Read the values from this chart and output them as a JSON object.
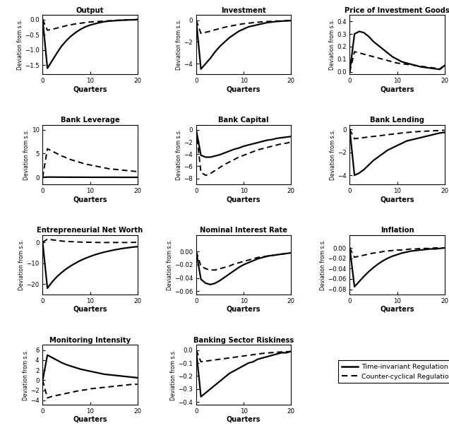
{
  "titles": [
    "Output",
    "Investment",
    "Price of Investment Goods",
    "Bank Leverage",
    "Bank Capital",
    "Bank Lending",
    "Entrepreneurial Net Worth",
    "Nominal Interest Rate",
    "Inflation",
    "Monitoring Intensity",
    "Banking Sector Riskiness"
  ],
  "quarters": 21,
  "ylabel": "Deviation from s.s.",
  "xlabel": "Quarters",
  "legend_labels": [
    "Time-invariant Regulation",
    "Counter-cyclical Regulation"
  ],
  "background": "#ffffff",
  "panels": {
    "Output": {
      "solid": [
        0,
        -1.6,
        -1.35,
        -1.1,
        -0.87,
        -0.69,
        -0.54,
        -0.42,
        -0.32,
        -0.24,
        -0.18,
        -0.14,
        -0.1,
        -0.07,
        -0.05,
        -0.04,
        -0.03,
        -0.02,
        -0.01,
        -0.01,
        0.0
      ],
      "dashed": [
        0,
        -0.35,
        -0.32,
        -0.28,
        -0.24,
        -0.2,
        -0.17,
        -0.14,
        -0.12,
        -0.1,
        -0.08,
        -0.07,
        -0.06,
        -0.05,
        -0.04,
        -0.03,
        -0.02,
        -0.02,
        -0.01,
        -0.01,
        0.0
      ],
      "ylim": [
        -1.8,
        0.15
      ],
      "yticks": [
        0,
        -0.5,
        -1.0,
        -1.5
      ]
    },
    "Investment": {
      "solid": [
        0,
        -4.5,
        -4.0,
        -3.5,
        -2.9,
        -2.4,
        -2.0,
        -1.6,
        -1.3,
        -1.0,
        -0.8,
        -0.6,
        -0.5,
        -0.4,
        -0.3,
        -0.2,
        -0.15,
        -0.1,
        -0.07,
        -0.04,
        -0.02
      ],
      "dashed": [
        0,
        -1.2,
        -1.1,
        -1.0,
        -0.87,
        -0.75,
        -0.64,
        -0.54,
        -0.46,
        -0.38,
        -0.31,
        -0.26,
        -0.21,
        -0.17,
        -0.13,
        -0.11,
        -0.08,
        -0.06,
        -0.05,
        -0.03,
        -0.02
      ],
      "ylim": [
        -5.0,
        0.5
      ],
      "yticks": [
        0,
        -2,
        -4
      ]
    },
    "Price of Investment Goods": {
      "solid": [
        0,
        0.3,
        0.32,
        0.31,
        0.28,
        0.24,
        0.21,
        0.18,
        0.15,
        0.12,
        0.1,
        0.08,
        0.07,
        0.06,
        0.05,
        0.04,
        0.035,
        0.03,
        0.025,
        0.02,
        0.05
      ],
      "dashed": [
        0,
        0.16,
        0.15,
        0.14,
        0.13,
        0.12,
        0.11,
        0.1,
        0.09,
        0.08,
        0.07,
        0.065,
        0.06,
        0.055,
        0.05,
        0.045,
        0.04,
        0.035,
        0.03,
        0.025,
        0.05
      ],
      "ylim": [
        -0.02,
        0.45
      ],
      "yticks": [
        0,
        0.1,
        0.2,
        0.3,
        0.4
      ]
    },
    "Bank Leverage": {
      "solid": [
        0,
        0.05,
        0.05,
        0.04,
        0.04,
        0.03,
        0.03,
        0.02,
        0.02,
        0.02,
        0.01,
        0.01,
        0.01,
        0.01,
        0.01,
        0.01,
        0.01,
        0.0,
        0.0,
        0.0,
        0.0
      ],
      "dashed": [
        0,
        6.0,
        5.5,
        5.0,
        4.5,
        4.1,
        3.7,
        3.4,
        3.1,
        2.8,
        2.6,
        2.4,
        2.2,
        2.0,
        1.8,
        1.7,
        1.6,
        1.5,
        1.4,
        1.3,
        1.2
      ],
      "ylim": [
        -1.5,
        11.0
      ],
      "yticks": [
        0,
        5,
        10
      ]
    },
    "Bank Capital": {
      "solid": [
        0,
        -4.2,
        -4.5,
        -4.5,
        -4.3,
        -4.1,
        -3.8,
        -3.5,
        -3.2,
        -3.0,
        -2.7,
        -2.5,
        -2.3,
        -2.1,
        -1.9,
        -1.7,
        -1.6,
        -1.4,
        -1.3,
        -1.2,
        -1.1
      ],
      "dashed": [
        0,
        -7.0,
        -7.5,
        -7.2,
        -6.7,
        -6.2,
        -5.7,
        -5.3,
        -4.9,
        -4.5,
        -4.2,
        -3.9,
        -3.6,
        -3.3,
        -3.1,
        -2.9,
        -2.7,
        -2.5,
        -2.3,
        -2.2,
        -2.0
      ],
      "ylim": [
        -9.0,
        0.8
      ],
      "yticks": [
        0,
        -2,
        -4,
        -6,
        -8
      ]
    },
    "Bank Lending": {
      "solid": [
        0,
        -4.0,
        -3.8,
        -3.5,
        -3.1,
        -2.7,
        -2.4,
        -2.1,
        -1.8,
        -1.6,
        -1.4,
        -1.2,
        -1.0,
        -0.9,
        -0.8,
        -0.7,
        -0.6,
        -0.5,
        -0.4,
        -0.3,
        -0.25
      ],
      "dashed": [
        0,
        -0.8,
        -0.75,
        -0.7,
        -0.65,
        -0.6,
        -0.55,
        -0.5,
        -0.45,
        -0.4,
        -0.35,
        -0.3,
        -0.26,
        -0.22,
        -0.19,
        -0.16,
        -0.14,
        -0.12,
        -0.1,
        -0.08,
        -0.06
      ],
      "ylim": [
        -4.8,
        0.4
      ],
      "yticks": [
        0,
        -2,
        -4
      ]
    },
    "Entrepreneurial Net Worth": {
      "solid": [
        0,
        -22.0,
        -19.0,
        -16.5,
        -14.5,
        -12.7,
        -11.2,
        -9.9,
        -8.7,
        -7.7,
        -6.8,
        -6.0,
        -5.3,
        -4.7,
        -4.2,
        -3.7,
        -3.3,
        -2.9,
        -2.6,
        -2.3,
        -2.1
      ],
      "dashed": [
        0,
        1.5,
        1.2,
        0.9,
        0.6,
        0.4,
        0.3,
        0.2,
        0.1,
        0.05,
        0.0,
        -0.05,
        -0.1,
        -0.1,
        -0.1,
        -0.1,
        -0.1,
        -0.1,
        -0.1,
        -0.05,
        0.0
      ],
      "ylim": [
        -25.0,
        3.5
      ],
      "yticks": [
        0,
        -10,
        -20
      ]
    },
    "Nominal Interest Rate": {
      "solid": [
        0,
        -0.042,
        -0.048,
        -0.05,
        -0.048,
        -0.044,
        -0.039,
        -0.034,
        -0.029,
        -0.024,
        -0.02,
        -0.017,
        -0.014,
        -0.011,
        -0.009,
        -0.007,
        -0.006,
        -0.005,
        -0.004,
        -0.003,
        -0.002
      ],
      "dashed": [
        0,
        -0.022,
        -0.026,
        -0.028,
        -0.028,
        -0.026,
        -0.024,
        -0.022,
        -0.019,
        -0.017,
        -0.015,
        -0.013,
        -0.011,
        -0.009,
        -0.008,
        -0.007,
        -0.006,
        -0.005,
        -0.004,
        -0.003,
        -0.002
      ],
      "ylim": [
        -0.065,
        0.025
      ],
      "yticks": [
        0,
        -0.02,
        -0.04,
        -0.06
      ]
    },
    "Inflation": {
      "solid": [
        0,
        -0.075,
        -0.065,
        -0.055,
        -0.046,
        -0.038,
        -0.031,
        -0.025,
        -0.02,
        -0.016,
        -0.013,
        -0.01,
        -0.008,
        -0.006,
        -0.005,
        -0.004,
        -0.003,
        -0.002,
        -0.002,
        -0.001,
        0.0
      ],
      "dashed": [
        0,
        -0.018,
        -0.016,
        -0.014,
        -0.012,
        -0.01,
        -0.009,
        -0.007,
        -0.006,
        -0.005,
        -0.004,
        -0.004,
        -0.003,
        -0.002,
        -0.002,
        -0.001,
        -0.001,
        -0.001,
        0.0,
        0.0,
        0.0
      ],
      "ylim": [
        -0.09,
        0.025
      ],
      "yticks": [
        0,
        -0.02,
        -0.04,
        -0.06,
        -0.08
      ]
    },
    "Monitoring Intensity": {
      "solid": [
        0,
        5.0,
        4.5,
        4.0,
        3.5,
        3.1,
        2.8,
        2.5,
        2.2,
        2.0,
        1.8,
        1.6,
        1.4,
        1.2,
        1.1,
        1.0,
        0.9,
        0.8,
        0.7,
        0.6,
        0.5
      ],
      "dashed": [
        0,
        -3.5,
        -3.2,
        -3.0,
        -2.8,
        -2.6,
        -2.4,
        -2.2,
        -2.0,
        -1.9,
        -1.7,
        -1.6,
        -1.5,
        -1.4,
        -1.3,
        -1.2,
        -1.1,
        -1.0,
        -0.9,
        -0.8,
        -0.8
      ],
      "ylim": [
        -4.8,
        7.0
      ],
      "yticks": [
        -4,
        -2,
        0,
        2,
        4,
        6
      ]
    },
    "Banking Sector Riskiness": {
      "solid": [
        0,
        -0.36,
        -0.33,
        -0.3,
        -0.27,
        -0.24,
        -0.21,
        -0.18,
        -0.16,
        -0.14,
        -0.12,
        -0.1,
        -0.09,
        -0.07,
        -0.06,
        -0.05,
        -0.04,
        -0.03,
        -0.02,
        -0.02,
        -0.01
      ],
      "dashed": [
        0,
        -0.09,
        -0.085,
        -0.08,
        -0.075,
        -0.07,
        -0.065,
        -0.06,
        -0.055,
        -0.05,
        -0.045,
        -0.04,
        -0.035,
        -0.03,
        -0.025,
        -0.022,
        -0.019,
        -0.016,
        -0.014,
        -0.012,
        -0.01
      ],
      "ylim": [
        -0.42,
        0.04
      ],
      "yticks": [
        0,
        -0.1,
        -0.2,
        -0.3,
        -0.4
      ]
    }
  }
}
